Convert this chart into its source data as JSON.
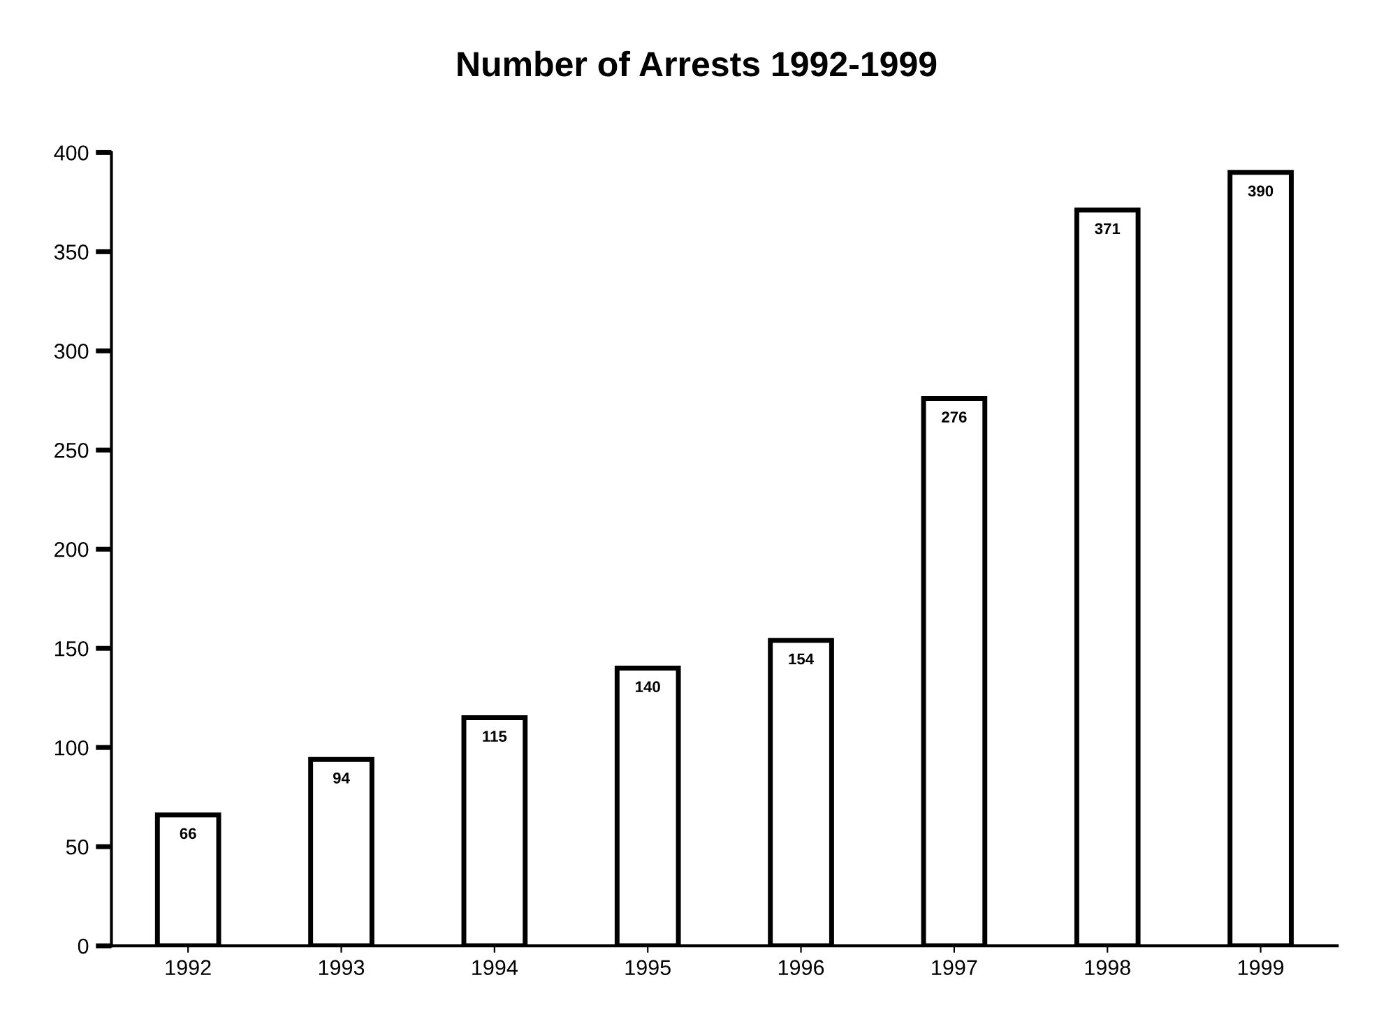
{
  "chart_data": {
    "type": "bar",
    "title": "Number of Arrests 1992-1999",
    "categories": [
      "1992",
      "1993",
      "1994",
      "1995",
      "1996",
      "1997",
      "1998",
      "1999"
    ],
    "values": [
      66,
      94,
      115,
      140,
      154,
      276,
      371,
      390
    ],
    "color": "#ffffff",
    "ylim": [
      0,
      400
    ],
    "yticks": [
      0,
      50,
      100,
      150,
      200,
      250,
      300,
      350,
      400
    ],
    "data_labels": true,
    "grid": false,
    "legend": false
  }
}
